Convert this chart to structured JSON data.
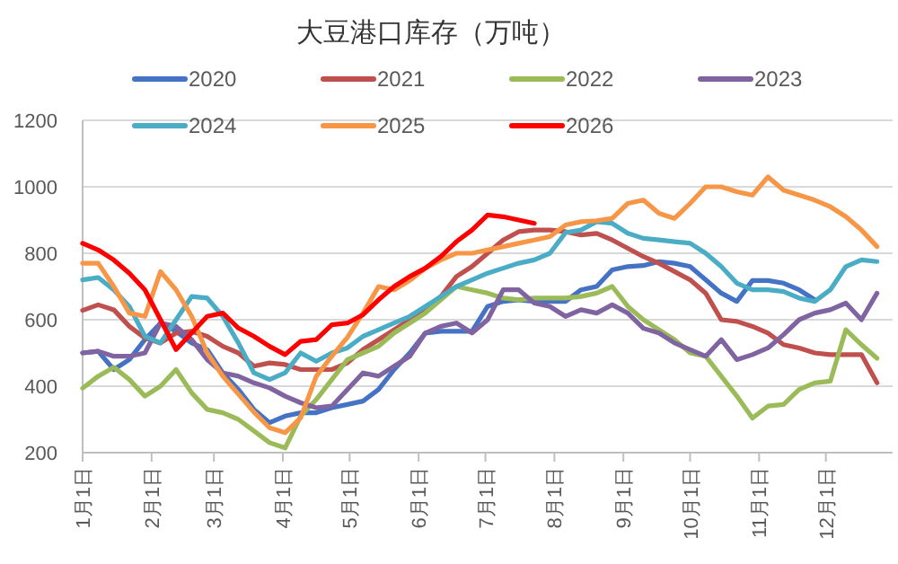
{
  "chart_data": {
    "type": "line",
    "title": "大豆港口库存（万吨）",
    "x": [
      "--01-01",
      "--01-08",
      "--01-15",
      "--01-22",
      "--01-29",
      "--02-05",
      "--02-12",
      "--02-19",
      "--02-26",
      "--03-05",
      "--03-12",
      "--03-19",
      "--03-26",
      "--04-02",
      "--04-09",
      "--04-16",
      "--04-23",
      "--04-30",
      "--05-07",
      "--05-14",
      "--05-21",
      "--05-28",
      "--06-04",
      "--06-11",
      "--06-18",
      "--06-25",
      "--07-02",
      "--07-09",
      "--07-16",
      "--07-23",
      "--07-30",
      "--08-06",
      "--08-13",
      "--08-20",
      "--08-27",
      "--09-03",
      "--09-10",
      "--09-17",
      "--09-24",
      "--10-01",
      "--10-08",
      "--10-15",
      "--10-22",
      "--10-29",
      "--11-05",
      "--11-12",
      "--11-19",
      "--11-26",
      "--12-03",
      "--12-10",
      "--12-17",
      "--12-24"
    ],
    "series": [
      {
        "name": "2020",
        "color": "#4472c4",
        "values": [
          500,
          505,
          450,
          480,
          540,
          590,
          565,
          530,
          510,
          440,
          390,
          330,
          290,
          310,
          320,
          320,
          335,
          345,
          355,
          390,
          450,
          500,
          560,
          565,
          565,
          565,
          640,
          655,
          660,
          655,
          655,
          655,
          690,
          700,
          750,
          760,
          763,
          775,
          770,
          760,
          720,
          680,
          655,
          718,
          718,
          710,
          690,
          660,
          null,
          null,
          null,
          null
        ]
      },
      {
        "name": "2021",
        "color": "#c0504d",
        "values": [
          628,
          645,
          630,
          580,
          545,
          530,
          560,
          565,
          550,
          520,
          500,
          460,
          470,
          465,
          450,
          450,
          450,
          470,
          510,
          540,
          570,
          600,
          630,
          670,
          730,
          760,
          800,
          840,
          865,
          870,
          870,
          865,
          855,
          860,
          840,
          815,
          790,
          770,
          745,
          720,
          680,
          600,
          595,
          580,
          560,
          525,
          515,
          500,
          495,
          495,
          495,
          410
        ]
      },
      {
        "name": "2022",
        "color": "#9bbb59",
        "values": [
          394,
          430,
          457,
          420,
          370,
          400,
          450,
          380,
          330,
          320,
          300,
          265,
          230,
          214,
          310,
          360,
          420,
          480,
          500,
          520,
          560,
          590,
          620,
          660,
          700,
          690,
          680,
          665,
          660,
          665,
          665,
          665,
          670,
          680,
          700,
          640,
          600,
          570,
          540,
          500,
          490,
          430,
          370,
          304,
          340,
          345,
          390,
          410,
          415,
          570,
          525,
          484
        ]
      },
      {
        "name": "2023",
        "color": "#8064a2",
        "values": [
          500,
          505,
          490,
          490,
          500,
          590,
          580,
          540,
          480,
          440,
          430,
          410,
          395,
          370,
          350,
          335,
          340,
          390,
          440,
          430,
          460,
          490,
          560,
          580,
          590,
          560,
          600,
          690,
          690,
          650,
          640,
          610,
          630,
          620,
          645,
          620,
          574,
          560,
          530,
          510,
          490,
          540,
          480,
          495,
          515,
          555,
          600,
          620,
          630,
          650,
          600,
          680
        ]
      },
      {
        "name": "2024",
        "color": "#4bacc6",
        "values": [
          720,
          727,
          690,
          640,
          550,
          530,
          600,
          670,
          665,
          610,
          530,
          440,
          420,
          440,
          500,
          475,
          500,
          515,
          550,
          570,
          590,
          610,
          640,
          670,
          700,
          720,
          740,
          755,
          770,
          780,
          800,
          862,
          870,
          895,
          890,
          860,
          845,
          840,
          835,
          830,
          800,
          760,
          710,
          690,
          690,
          685,
          665,
          655,
          690,
          760,
          780,
          775
        ]
      },
      {
        "name": "2025",
        "color": "#f79646",
        "values": [
          770,
          770,
          700,
          620,
          610,
          745,
          690,
          610,
          500,
          430,
          376,
          322,
          275,
          260,
          305,
          430,
          490,
          547,
          620,
          700,
          690,
          718,
          755,
          780,
          800,
          800,
          810,
          820,
          830,
          840,
          850,
          885,
          895,
          898,
          905,
          950,
          960,
          920,
          905,
          950,
          1000,
          1000,
          985,
          975,
          1030,
          990,
          975,
          960,
          940,
          910,
          870,
          820
        ]
      },
      {
        "name": "2026",
        "color": "#ff0000",
        "values": [
          830,
          810,
          780,
          740,
          690,
          600,
          510,
          560,
          610,
          620,
          575,
          550,
          520,
          495,
          535,
          540,
          585,
          590,
          615,
          660,
          700,
          730,
          755,
          790,
          835,
          870,
          915,
          910,
          900,
          890,
          null,
          null,
          null,
          null,
          null,
          null,
          null,
          null,
          null,
          null,
          null,
          null,
          null,
          null,
          null,
          null,
          null,
          null,
          null,
          null,
          null,
          null
        ]
      }
    ],
    "xlim": [
      "--01-01",
      "--12-31"
    ],
    "xticks": [
      {
        "value": "--01-01",
        "label": "1月1日"
      },
      {
        "value": "--02-01",
        "label": "2月1日"
      },
      {
        "value": "--03-01",
        "label": "3月1日"
      },
      {
        "value": "--04-01",
        "label": "4月1日"
      },
      {
        "value": "--05-01",
        "label": "5月1日"
      },
      {
        "value": "--06-01",
        "label": "6月1日"
      },
      {
        "value": "--07-01",
        "label": "7月1日"
      },
      {
        "value": "--08-01",
        "label": "8月1日"
      },
      {
        "value": "--09-01",
        "label": "9月1日"
      },
      {
        "value": "--10-01",
        "label": "10月1日"
      },
      {
        "value": "--11-01",
        "label": "11月1日"
      },
      {
        "value": "--12-01",
        "label": "12月1日"
      }
    ],
    "ylim": [
      200,
      1200
    ],
    "yticks": [
      200,
      400,
      600,
      800,
      1000,
      1200
    ],
    "grid": "y",
    "legend": "top"
  }
}
